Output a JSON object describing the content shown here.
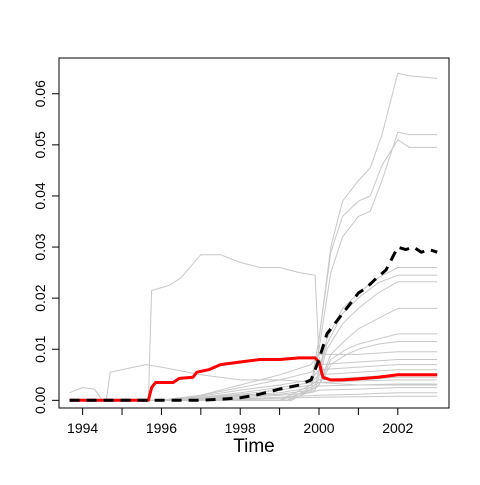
{
  "chart_data": {
    "type": "line",
    "title": "",
    "xlabel": "Time",
    "ylabel": "",
    "xlim": [
      1993.4,
      2003.3
    ],
    "ylim": [
      -0.0015,
      0.067
    ],
    "x_ticks": [
      1994,
      1996,
      1998,
      2000,
      2002
    ],
    "x_tick_labels": [
      "1994",
      "1996",
      "1998",
      "2000",
      "2002"
    ],
    "x_minor_ticks": [
      1995,
      1997,
      1999,
      2001
    ],
    "y_ticks": [
      0.0,
      0.01,
      0.02,
      0.03,
      0.04,
      0.05,
      0.06
    ],
    "y_tick_labels": [
      "0.00",
      "0.01",
      "0.02",
      "0.03",
      "0.04",
      "0.05",
      "0.06"
    ],
    "grid": false,
    "legend": "none",
    "colors": {
      "background_series": "#c8c8c8",
      "highlight_red": "#ff0000",
      "highlight_black": "#000000",
      "frame": "#000000"
    },
    "series": [
      {
        "style": "gray",
        "points": [
          [
            1993.67,
            0.0015
          ],
          [
            1994.0,
            0.0025
          ],
          [
            1994.3,
            0.0022
          ],
          [
            1994.5,
            0.0
          ],
          [
            1995.0,
            0.0
          ],
          [
            1995.67,
            0.0
          ],
          [
            1995.75,
            0.0215
          ],
          [
            1996.2,
            0.0225
          ],
          [
            1996.5,
            0.024
          ],
          [
            1997.0,
            0.0285
          ],
          [
            1997.5,
            0.0285
          ],
          [
            1998.0,
            0.027
          ],
          [
            1998.5,
            0.026
          ],
          [
            1999.0,
            0.026
          ],
          [
            1999.5,
            0.025
          ],
          [
            1999.9,
            0.0245
          ],
          [
            2000.0,
            0.0085
          ],
          [
            2000.2,
            0.004
          ],
          [
            2001.0,
            0.004
          ],
          [
            2002.0,
            0.0045
          ],
          [
            2003.0,
            0.0045
          ]
        ]
      },
      {
        "style": "gray",
        "points": [
          [
            1994.6,
            0.0
          ],
          [
            1994.7,
            0.0055
          ],
          [
            1995.0,
            0.006
          ],
          [
            1995.6,
            0.007
          ],
          [
            1996.0,
            0.0065
          ],
          [
            1997.0,
            0.005
          ],
          [
            1998.0,
            0.004
          ],
          [
            1999.0,
            0.004
          ],
          [
            2000.0,
            0.0035
          ],
          [
            2001.0,
            0.003
          ],
          [
            2002.0,
            0.003
          ],
          [
            2003.0,
            0.003
          ]
        ]
      },
      {
        "style": "gray",
        "points": [
          [
            1993.67,
            0.0
          ],
          [
            1999.0,
            0.0
          ],
          [
            1999.8,
            0.003
          ],
          [
            2000.0,
            0.012
          ],
          [
            2000.3,
            0.03
          ],
          [
            2000.6,
            0.039
          ],
          [
            2001.0,
            0.043
          ],
          [
            2001.3,
            0.0455
          ],
          [
            2001.6,
            0.052
          ],
          [
            2002.0,
            0.064
          ],
          [
            2002.3,
            0.0635
          ],
          [
            2003.0,
            0.063
          ]
        ]
      },
      {
        "style": "gray",
        "points": [
          [
            1993.67,
            0.0
          ],
          [
            1999.0,
            0.0
          ],
          [
            1999.8,
            0.003
          ],
          [
            2000.0,
            0.012
          ],
          [
            2000.3,
            0.029
          ],
          [
            2000.6,
            0.036
          ],
          [
            2001.0,
            0.039
          ],
          [
            2001.3,
            0.04
          ],
          [
            2001.6,
            0.046
          ],
          [
            2002.0,
            0.051
          ],
          [
            2002.3,
            0.0495
          ],
          [
            2003.0,
            0.0495
          ]
        ]
      },
      {
        "style": "gray",
        "points": [
          [
            1993.67,
            0.0
          ],
          [
            1999.0,
            0.0
          ],
          [
            1999.8,
            0.002
          ],
          [
            2000.0,
            0.01
          ],
          [
            2000.3,
            0.025
          ],
          [
            2000.6,
            0.032
          ],
          [
            2001.0,
            0.036
          ],
          [
            2001.3,
            0.037
          ],
          [
            2001.6,
            0.043
          ],
          [
            2002.0,
            0.0525
          ],
          [
            2002.3,
            0.052
          ],
          [
            2003.0,
            0.052
          ]
        ]
      },
      {
        "style": "gray",
        "points": [
          [
            1993.67,
            0.0
          ],
          [
            1999.2,
            0.0
          ],
          [
            1999.9,
            0.003
          ],
          [
            2000.2,
            0.012
          ],
          [
            2000.6,
            0.018
          ],
          [
            2001.0,
            0.021
          ],
          [
            2001.5,
            0.024
          ],
          [
            2002.0,
            0.026
          ],
          [
            2003.0,
            0.026
          ]
        ]
      },
      {
        "style": "gray",
        "points": [
          [
            1993.67,
            0.0
          ],
          [
            1999.2,
            0.0
          ],
          [
            1999.9,
            0.003
          ],
          [
            2000.2,
            0.011
          ],
          [
            2000.6,
            0.017
          ],
          [
            2001.0,
            0.02
          ],
          [
            2001.5,
            0.023
          ],
          [
            2002.0,
            0.0245
          ],
          [
            2003.0,
            0.0245
          ]
        ]
      },
      {
        "style": "gray",
        "points": [
          [
            1993.67,
            0.0
          ],
          [
            1999.2,
            0.0
          ],
          [
            1999.9,
            0.002
          ],
          [
            2000.2,
            0.01
          ],
          [
            2000.6,
            0.015
          ],
          [
            2001.0,
            0.018
          ],
          [
            2001.5,
            0.021
          ],
          [
            2002.0,
            0.0232
          ],
          [
            2003.0,
            0.0232
          ]
        ]
      },
      {
        "style": "gray",
        "points": [
          [
            1993.67,
            0.0
          ],
          [
            1999.3,
            0.0
          ],
          [
            2000.0,
            0.003
          ],
          [
            2000.3,
            0.009
          ],
          [
            2000.7,
            0.012
          ],
          [
            2001.0,
            0.014
          ],
          [
            2001.5,
            0.016
          ],
          [
            2002.0,
            0.018
          ],
          [
            2003.0,
            0.018
          ]
        ]
      },
      {
        "style": "gray",
        "points": [
          [
            1993.67,
            0.0
          ],
          [
            1999.3,
            0.0
          ],
          [
            2000.0,
            0.003
          ],
          [
            2000.3,
            0.008
          ],
          [
            2000.7,
            0.01
          ],
          [
            2001.0,
            0.011
          ],
          [
            2001.5,
            0.012
          ],
          [
            2002.0,
            0.013
          ],
          [
            2003.0,
            0.013
          ]
        ]
      },
      {
        "style": "gray",
        "points": [
          [
            1993.67,
            0.0
          ],
          [
            1999.3,
            0.0
          ],
          [
            2000.0,
            0.003
          ],
          [
            2000.3,
            0.007
          ],
          [
            2000.7,
            0.009
          ],
          [
            2001.0,
            0.01
          ],
          [
            2001.5,
            0.011
          ],
          [
            2002.0,
            0.0115
          ],
          [
            2003.0,
            0.0115
          ]
        ]
      },
      {
        "style": "gray",
        "points": [
          [
            1993.67,
            0.0
          ],
          [
            1996.0,
            0.0
          ],
          [
            1997.0,
            0.001
          ],
          [
            1998.0,
            0.003
          ],
          [
            1999.0,
            0.005
          ],
          [
            1999.8,
            0.007
          ],
          [
            2000.0,
            0.009
          ],
          [
            2001.0,
            0.009
          ],
          [
            2002.0,
            0.0095
          ],
          [
            2003.0,
            0.0095
          ]
        ]
      },
      {
        "style": "gray",
        "points": [
          [
            1993.67,
            0.0
          ],
          [
            1996.0,
            0.0
          ],
          [
            1997.0,
            0.001
          ],
          [
            1998.0,
            0.0025
          ],
          [
            1999.0,
            0.004
          ],
          [
            1999.8,
            0.0055
          ],
          [
            2000.0,
            0.007
          ],
          [
            2001.0,
            0.0075
          ],
          [
            2002.0,
            0.008
          ],
          [
            2003.0,
            0.008
          ]
        ]
      },
      {
        "style": "gray",
        "points": [
          [
            1993.67,
            0.0
          ],
          [
            1996.0,
            0.0
          ],
          [
            1997.0,
            0.0008
          ],
          [
            1998.0,
            0.002
          ],
          [
            1999.0,
            0.003
          ],
          [
            1999.8,
            0.004
          ],
          [
            2000.0,
            0.006
          ],
          [
            2001.0,
            0.0065
          ],
          [
            2002.0,
            0.007
          ],
          [
            2003.0,
            0.007
          ]
        ]
      },
      {
        "style": "gray",
        "points": [
          [
            1993.67,
            0.0
          ],
          [
            1996.0,
            0.0
          ],
          [
            1997.0,
            0.0006
          ],
          [
            1998.0,
            0.0015
          ],
          [
            1999.0,
            0.0025
          ],
          [
            1999.8,
            0.0035
          ],
          [
            2000.0,
            0.005
          ],
          [
            2001.0,
            0.0055
          ],
          [
            2002.0,
            0.006
          ],
          [
            2003.0,
            0.006
          ]
        ]
      },
      {
        "style": "gray",
        "points": [
          [
            1993.67,
            0.0
          ],
          [
            1996.0,
            0.0
          ],
          [
            1997.0,
            0.0005
          ],
          [
            1998.0,
            0.0012
          ],
          [
            1999.0,
            0.002
          ],
          [
            1999.8,
            0.003
          ],
          [
            2000.0,
            0.004
          ],
          [
            2001.0,
            0.0045
          ],
          [
            2002.0,
            0.005
          ],
          [
            2003.0,
            0.005
          ]
        ]
      },
      {
        "style": "gray",
        "points": [
          [
            1993.67,
            0.0
          ],
          [
            1996.0,
            0.0
          ],
          [
            1997.0,
            0.0004
          ],
          [
            1998.0,
            0.001
          ],
          [
            1999.0,
            0.0015
          ],
          [
            1999.8,
            0.0025
          ],
          [
            2000.0,
            0.0035
          ],
          [
            2001.0,
            0.0038
          ],
          [
            2002.0,
            0.004
          ],
          [
            2003.0,
            0.004
          ]
        ]
      },
      {
        "style": "gray",
        "points": [
          [
            1993.67,
            0.0
          ],
          [
            1996.0,
            0.0
          ],
          [
            1997.0,
            0.0003
          ],
          [
            1998.0,
            0.0008
          ],
          [
            1999.0,
            0.0012
          ],
          [
            1999.8,
            0.002
          ],
          [
            2000.0,
            0.0028
          ],
          [
            2001.0,
            0.003
          ],
          [
            2002.0,
            0.0032
          ],
          [
            2003.0,
            0.0032
          ]
        ]
      },
      {
        "style": "gray",
        "points": [
          [
            1993.67,
            0.0
          ],
          [
            1996.0,
            0.0
          ],
          [
            1997.0,
            0.0002
          ],
          [
            1998.0,
            0.0005
          ],
          [
            1999.0,
            0.001
          ],
          [
            1999.8,
            0.0015
          ],
          [
            2000.0,
            0.002
          ],
          [
            2001.0,
            0.0022
          ],
          [
            2002.0,
            0.0025
          ],
          [
            2003.0,
            0.0025
          ]
        ]
      },
      {
        "style": "gray",
        "points": [
          [
            1993.67,
            0.0
          ],
          [
            1996.0,
            0.0
          ],
          [
            1998.0,
            0.0003
          ],
          [
            1999.0,
            0.0006
          ],
          [
            2000.0,
            0.001
          ],
          [
            2001.0,
            0.0012
          ],
          [
            2002.0,
            0.0015
          ],
          [
            2003.0,
            0.0015
          ]
        ]
      },
      {
        "style": "gray",
        "points": [
          [
            1993.67,
            0.0
          ],
          [
            1997.0,
            0.0
          ],
          [
            1998.0,
            0.0002
          ],
          [
            1999.0,
            0.0004
          ],
          [
            2000.0,
            0.0006
          ],
          [
            2001.0,
            0.0007
          ],
          [
            2002.0,
            0.0008
          ],
          [
            2003.0,
            0.0008
          ]
        ]
      },
      {
        "style": "red",
        "points": [
          [
            1993.67,
            0.0
          ],
          [
            1995.67,
            0.0
          ],
          [
            1995.75,
            0.0025
          ],
          [
            1995.85,
            0.0035
          ],
          [
            1996.3,
            0.0035
          ],
          [
            1996.45,
            0.0043
          ],
          [
            1996.8,
            0.0045
          ],
          [
            1996.9,
            0.0055
          ],
          [
            1997.2,
            0.006
          ],
          [
            1997.5,
            0.007
          ],
          [
            1998.0,
            0.0075
          ],
          [
            1998.5,
            0.008
          ],
          [
            1999.0,
            0.008
          ],
          [
            1999.5,
            0.0083
          ],
          [
            1999.9,
            0.0083
          ],
          [
            2000.0,
            0.0075
          ],
          [
            2000.1,
            0.0045
          ],
          [
            2000.3,
            0.004
          ],
          [
            2000.6,
            0.004
          ],
          [
            2001.0,
            0.0042
          ],
          [
            2001.5,
            0.0045
          ],
          [
            2002.0,
            0.005
          ],
          [
            2003.0,
            0.005
          ]
        ]
      },
      {
        "style": "black-dashed",
        "points": [
          [
            1993.67,
            0.0
          ],
          [
            1997.0,
            0.0
          ],
          [
            1997.5,
            0.0002
          ],
          [
            1998.0,
            0.0005
          ],
          [
            1998.5,
            0.0012
          ],
          [
            1999.0,
            0.0022
          ],
          [
            1999.5,
            0.003
          ],
          [
            1999.8,
            0.004
          ],
          [
            2000.0,
            0.008
          ],
          [
            2000.2,
            0.013
          ],
          [
            2000.5,
            0.016
          ],
          [
            2000.8,
            0.019
          ],
          [
            2001.0,
            0.021
          ],
          [
            2001.2,
            0.022
          ],
          [
            2001.4,
            0.0235
          ],
          [
            2001.7,
            0.0255
          ],
          [
            2002.0,
            0.03
          ],
          [
            2002.2,
            0.0295
          ],
          [
            2002.4,
            0.03
          ],
          [
            2002.6,
            0.029
          ],
          [
            2002.8,
            0.0295
          ],
          [
            2003.0,
            0.029
          ]
        ]
      }
    ]
  }
}
